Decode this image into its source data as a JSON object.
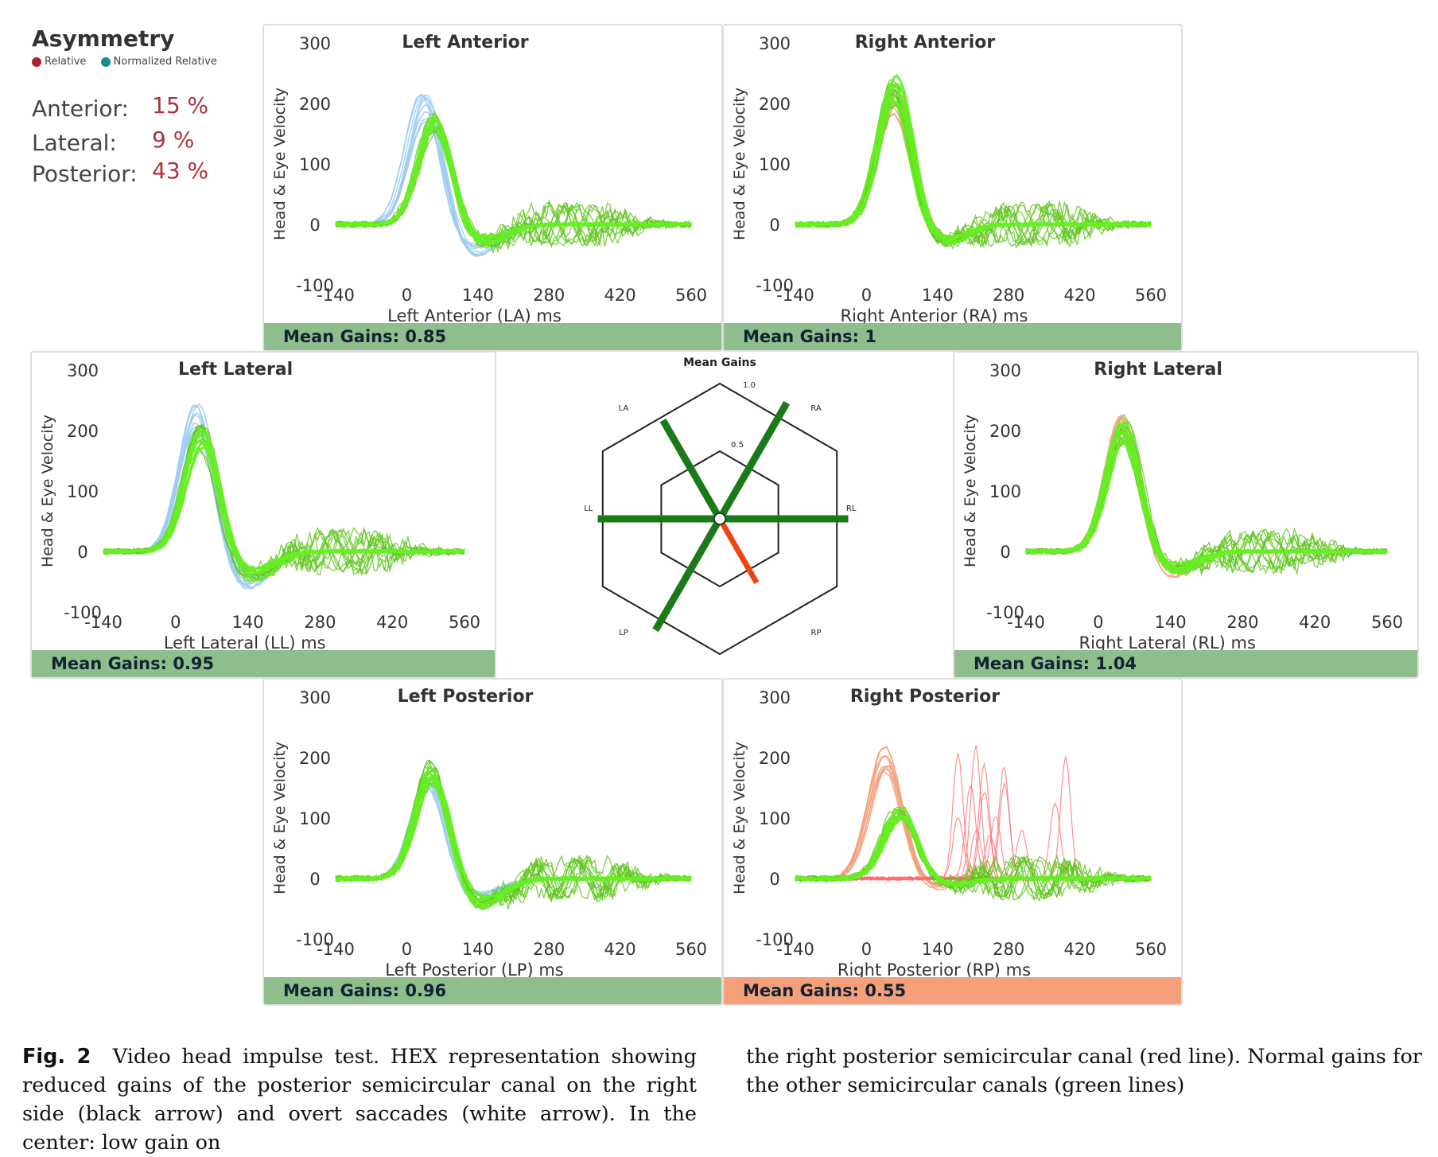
{
  "colors": {
    "green_trace": "#66ee22",
    "green_trace_dark": "#5cc51a",
    "blue_head": "#9ccbf0",
    "orange_head": "#f2a07b",
    "saccade_red": "#ff6b6b",
    "gain_bar_normal": "#8fbe8d",
    "gain_bar_reduced": "#f5a07a",
    "hex_green": "#1a7a1a",
    "hex_red": "#ee4411",
    "asym_value": "#b0313b",
    "relative_dot": "#b0202a",
    "normalized_dot": "#1a8c8c"
  },
  "asymmetry": {
    "title": "Asymmetry",
    "legend_relative": "Relative",
    "legend_normalized": "Normalized Relative",
    "rows": [
      {
        "label": "Anterior:",
        "value": "15 %"
      },
      {
        "label": "Lateral:",
        "value": "9 %"
      },
      {
        "label": "Posterior:",
        "value": "43 %"
      }
    ]
  },
  "axis": {
    "ylabel": "Head & Eye Velocity",
    "y_ticks": [
      "300",
      "200",
      "100",
      "0",
      "-100"
    ],
    "x_ticks": [
      "-140",
      "0",
      "140",
      "280",
      "420",
      "560"
    ]
  },
  "panels": [
    {
      "key": "la",
      "title": "Left Anterior",
      "xlabel": "Left Anterior (LA) ms",
      "gain_text": "Mean Gains: 0.85",
      "head_color": "blue",
      "reduced": false
    },
    {
      "key": "ra",
      "title": "Right Anterior",
      "xlabel": "Right Anterior (RA) ms",
      "gain_text": "Mean Gains: 1",
      "head_color": "orange",
      "reduced": false
    },
    {
      "key": "ll",
      "title": "Left Lateral",
      "xlabel": "Left Lateral (LL) ms",
      "gain_text": "Mean Gains: 0.95",
      "head_color": "blue",
      "reduced": false
    },
    {
      "key": "rl",
      "title": "Right Lateral",
      "xlabel": "Right Lateral (RL) ms",
      "gain_text": "Mean Gains: 1.04",
      "head_color": "orange",
      "reduced": false
    },
    {
      "key": "lp",
      "title": "Left Posterior",
      "xlabel": "Left Posterior (LP) ms",
      "gain_text": "Mean Gains: 0.96",
      "head_color": "blue",
      "reduced": false
    },
    {
      "key": "rp",
      "title": "Right Posterior",
      "xlabel": "Right Posterior (RP) ms",
      "gain_text": "Mean Gains: 0.55",
      "head_color": "orange",
      "reduced": true
    }
  ],
  "hex": {
    "title": "Mean Gains",
    "ring_outer": "1.0",
    "ring_inner": "0.5",
    "axes": [
      "LA",
      "RA",
      "LL",
      "RL",
      "LP",
      "RP"
    ]
  },
  "caption": {
    "label": "Fig. 2",
    "left_text": "Video head impulse test. HEX representation showing reduced gains of the posterior semicircular canal on the right side (black arrow) and overt saccades (white arrow). In the center: low gain on",
    "right_text": "the right posterior semicircular canal (red line). Normal gains for the other semicircular canals (green lines)"
  },
  "chart_data": [
    {
      "type": "line",
      "title": "Left Anterior",
      "xlabel": "Left Anterior (LA) ms",
      "ylabel": "Head & Eye Velocity",
      "xlim": [
        -140,
        560
      ],
      "ylim": [
        -100,
        300
      ],
      "x_ticks": [
        -140,
        0,
        140,
        280,
        420,
        560
      ],
      "y_ticks": [
        300,
        200,
        100,
        0,
        -100
      ],
      "series": [
        {
          "name": "Head",
          "peak_x": 35,
          "peak_y": 200,
          "trough_y": -42
        },
        {
          "name": "Eye",
          "peak_x": 55,
          "peak_y": 170,
          "trough_y": -30
        }
      ],
      "mean_gain": 0.85
    },
    {
      "type": "line",
      "title": "Right Anterior",
      "xlabel": "Right Anterior (RA) ms",
      "ylabel": "Head & Eye Velocity",
      "xlim": [
        -140,
        560
      ],
      "ylim": [
        -100,
        300
      ],
      "x_ticks": [
        -140,
        0,
        140,
        280,
        420,
        560
      ],
      "y_ticks": [
        300,
        200,
        100,
        0,
        -100
      ],
      "series": [
        {
          "name": "Head",
          "peak_x": 55,
          "peak_y": 205,
          "trough_y": -25
        },
        {
          "name": "Eye",
          "peak_x": 55,
          "peak_y": 225,
          "trough_y": -30
        }
      ],
      "mean_gain": 1
    },
    {
      "type": "line",
      "title": "Left Lateral",
      "xlabel": "Left Lateral (LL) ms",
      "ylabel": "Head & Eye Velocity",
      "xlim": [
        -140,
        560
      ],
      "ylim": [
        -100,
        300
      ],
      "x_ticks": [
        -140,
        0,
        140,
        280,
        420,
        560
      ],
      "y_ticks": [
        300,
        200,
        100,
        0,
        -100
      ],
      "series": [
        {
          "name": "Head",
          "peak_x": 45,
          "peak_y": 230,
          "trough_y": -55
        },
        {
          "name": "Eye",
          "peak_x": 50,
          "peak_y": 195,
          "trough_y": -40
        }
      ],
      "mean_gain": 0.95
    },
    {
      "type": "line",
      "title": "Right Lateral",
      "xlabel": "Right Lateral (RL) ms",
      "ylabel": "Head & Eye Velocity",
      "xlim": [
        -140,
        560
      ],
      "ylim": [
        -100,
        300
      ],
      "x_ticks": [
        -140,
        0,
        140,
        280,
        420,
        560
      ],
      "y_ticks": [
        300,
        200,
        100,
        0,
        -100
      ],
      "series": [
        {
          "name": "Head",
          "peak_x": 50,
          "peak_y": 210,
          "trough_y": -35
        },
        {
          "name": "Eye",
          "peak_x": 50,
          "peak_y": 205,
          "trough_y": -30
        }
      ],
      "mean_gain": 1.04
    },
    {
      "type": "line",
      "title": "Left Posterior",
      "xlabel": "Left Posterior (LP) ms",
      "ylabel": "Head & Eye Velocity",
      "xlim": [
        -140,
        560
      ],
      "ylim": [
        -100,
        300
      ],
      "x_ticks": [
        -140,
        0,
        140,
        280,
        420,
        560
      ],
      "y_ticks": [
        300,
        200,
        100,
        0,
        -100
      ],
      "series": [
        {
          "name": "Head",
          "peak_x": 45,
          "peak_y": 175,
          "trough_y": -35
        },
        {
          "name": "Eye",
          "peak_x": 50,
          "peak_y": 180,
          "trough_y": -40
        }
      ],
      "mean_gain": 0.96
    },
    {
      "type": "line",
      "title": "Right Posterior",
      "xlabel": "Right Posterior (RP) ms",
      "ylabel": "Head & Eye Velocity",
      "xlim": [
        -140,
        560
      ],
      "ylim": [
        -100,
        300
      ],
      "x_ticks": [
        -140,
        0,
        140,
        280,
        420,
        560
      ],
      "y_ticks": [
        300,
        200,
        100,
        0,
        -100
      ],
      "series": [
        {
          "name": "Head",
          "peak_x": 40,
          "peak_y": 200,
          "trough_y": -15
        },
        {
          "name": "Eye",
          "peak_x": 65,
          "peak_y": 110,
          "trough_y": -10
        },
        {
          "name": "Saccades",
          "x_range": [
            180,
            400
          ],
          "max_y": 240
        }
      ],
      "mean_gain": 0.55
    }
  ]
}
